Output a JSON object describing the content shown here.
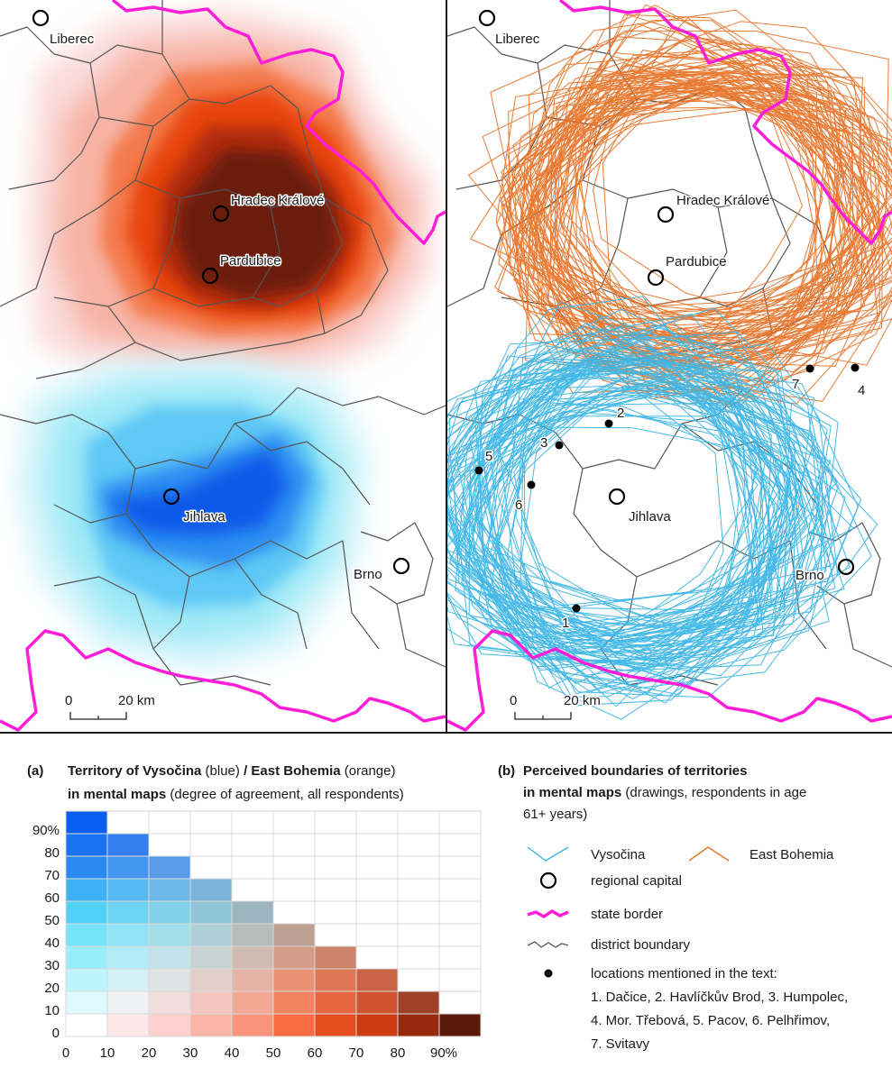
{
  "cities": {
    "liberec": "Liberec",
    "hradec": "Hradec Králové",
    "pardubice": "Pardubice",
    "jihlava": "Jihlava",
    "brno": "Brno"
  },
  "scale_bar": {
    "zero": "0",
    "distance": "20 km"
  },
  "locations": [
    "1",
    "2",
    "3",
    "4",
    "5",
    "6",
    "7"
  ],
  "panel_a": {
    "letter": "(a)",
    "title_bold_1": "Territory of Vysočina",
    "title_normal_1": " (blue) ",
    "title_bold_2": "/ East Bohemia",
    "title_normal_2": " (orange)",
    "title_bold_3": "in mental maps",
    "title_normal_3": " (degree of agreement, all respondents)",
    "y_ticks": [
      "90%",
      "80",
      "70",
      "60",
      "50",
      "40",
      "30",
      "20",
      "10",
      "0"
    ],
    "x_ticks": [
      "0",
      "10",
      "20",
      "30",
      "40",
      "50",
      "60",
      "70",
      "80",
      "90%"
    ]
  },
  "panel_b": {
    "letter": "(b)",
    "title_bold_1": "Perceived boundaries of territories",
    "title_bold_2": "in mental maps",
    "title_normal_2": " (drawings, respondents in age",
    "title_normal_3": "61+ years)",
    "legend": {
      "vysocina": "Vysočina",
      "east_bohemia": "East Bohemia",
      "regional_capital": "regional capital",
      "state_border": "state border",
      "district_boundary": "district boundary",
      "locations_title": "locations mentioned in the text:",
      "locations_line1": "1. Dačice, 2. Havlíčkův Brod, 3. Humpolec,",
      "locations_line2": "4. Mor. Třebová, 5. Pacov, 6. Pelhřimov,",
      "locations_line3": "7. Svitavy"
    }
  },
  "colors": {
    "vysocina": "#3cb6e6",
    "east_bohemia": "#e8742a",
    "state_border": "#ff1ed8",
    "district": "#555555",
    "blue_max": "#0a5ef0",
    "orange_max": "#5a1a08"
  }
}
